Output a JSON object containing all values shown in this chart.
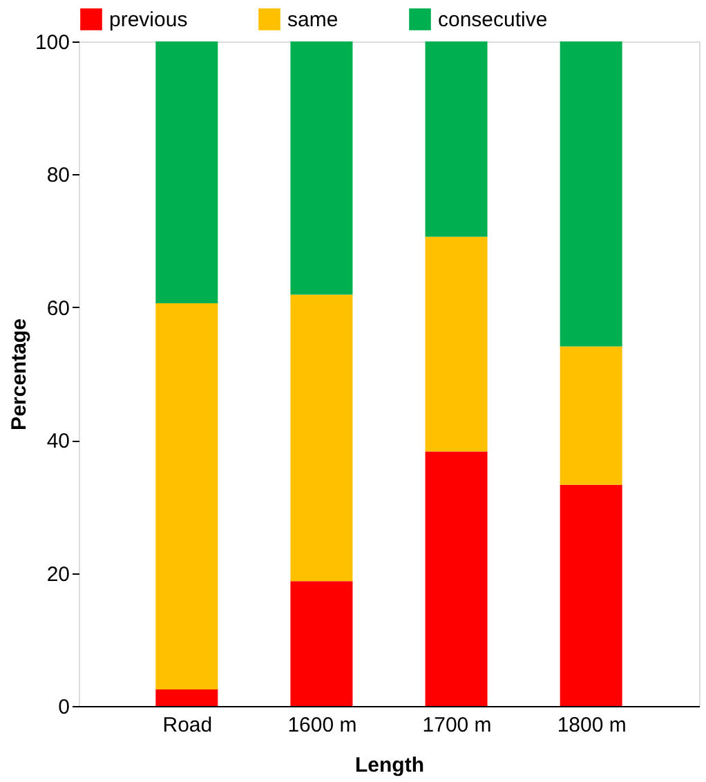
{
  "chart_data": {
    "type": "bar",
    "stacked": true,
    "xlabel": "Length",
    "ylabel": "Percentage",
    "categories": [
      "Road",
      "1600 m",
      "1700 m",
      "1800 m"
    ],
    "series": [
      {
        "name": "previous",
        "color": "#ff0000",
        "values": [
          2.5,
          18.8,
          38.3,
          33.3
        ]
      },
      {
        "name": "same",
        "color": "#ffc000",
        "values": [
          58.1,
          43.1,
          32.3,
          20.8
        ]
      },
      {
        "name": "consecutive",
        "color": "#00b050",
        "values": [
          39.4,
          38.1,
          29.4,
          45.9
        ]
      }
    ],
    "ylim": [
      0,
      100
    ],
    "yticks": [
      0,
      20,
      40,
      60,
      80,
      100
    ],
    "grid": false,
    "legend": "top"
  }
}
